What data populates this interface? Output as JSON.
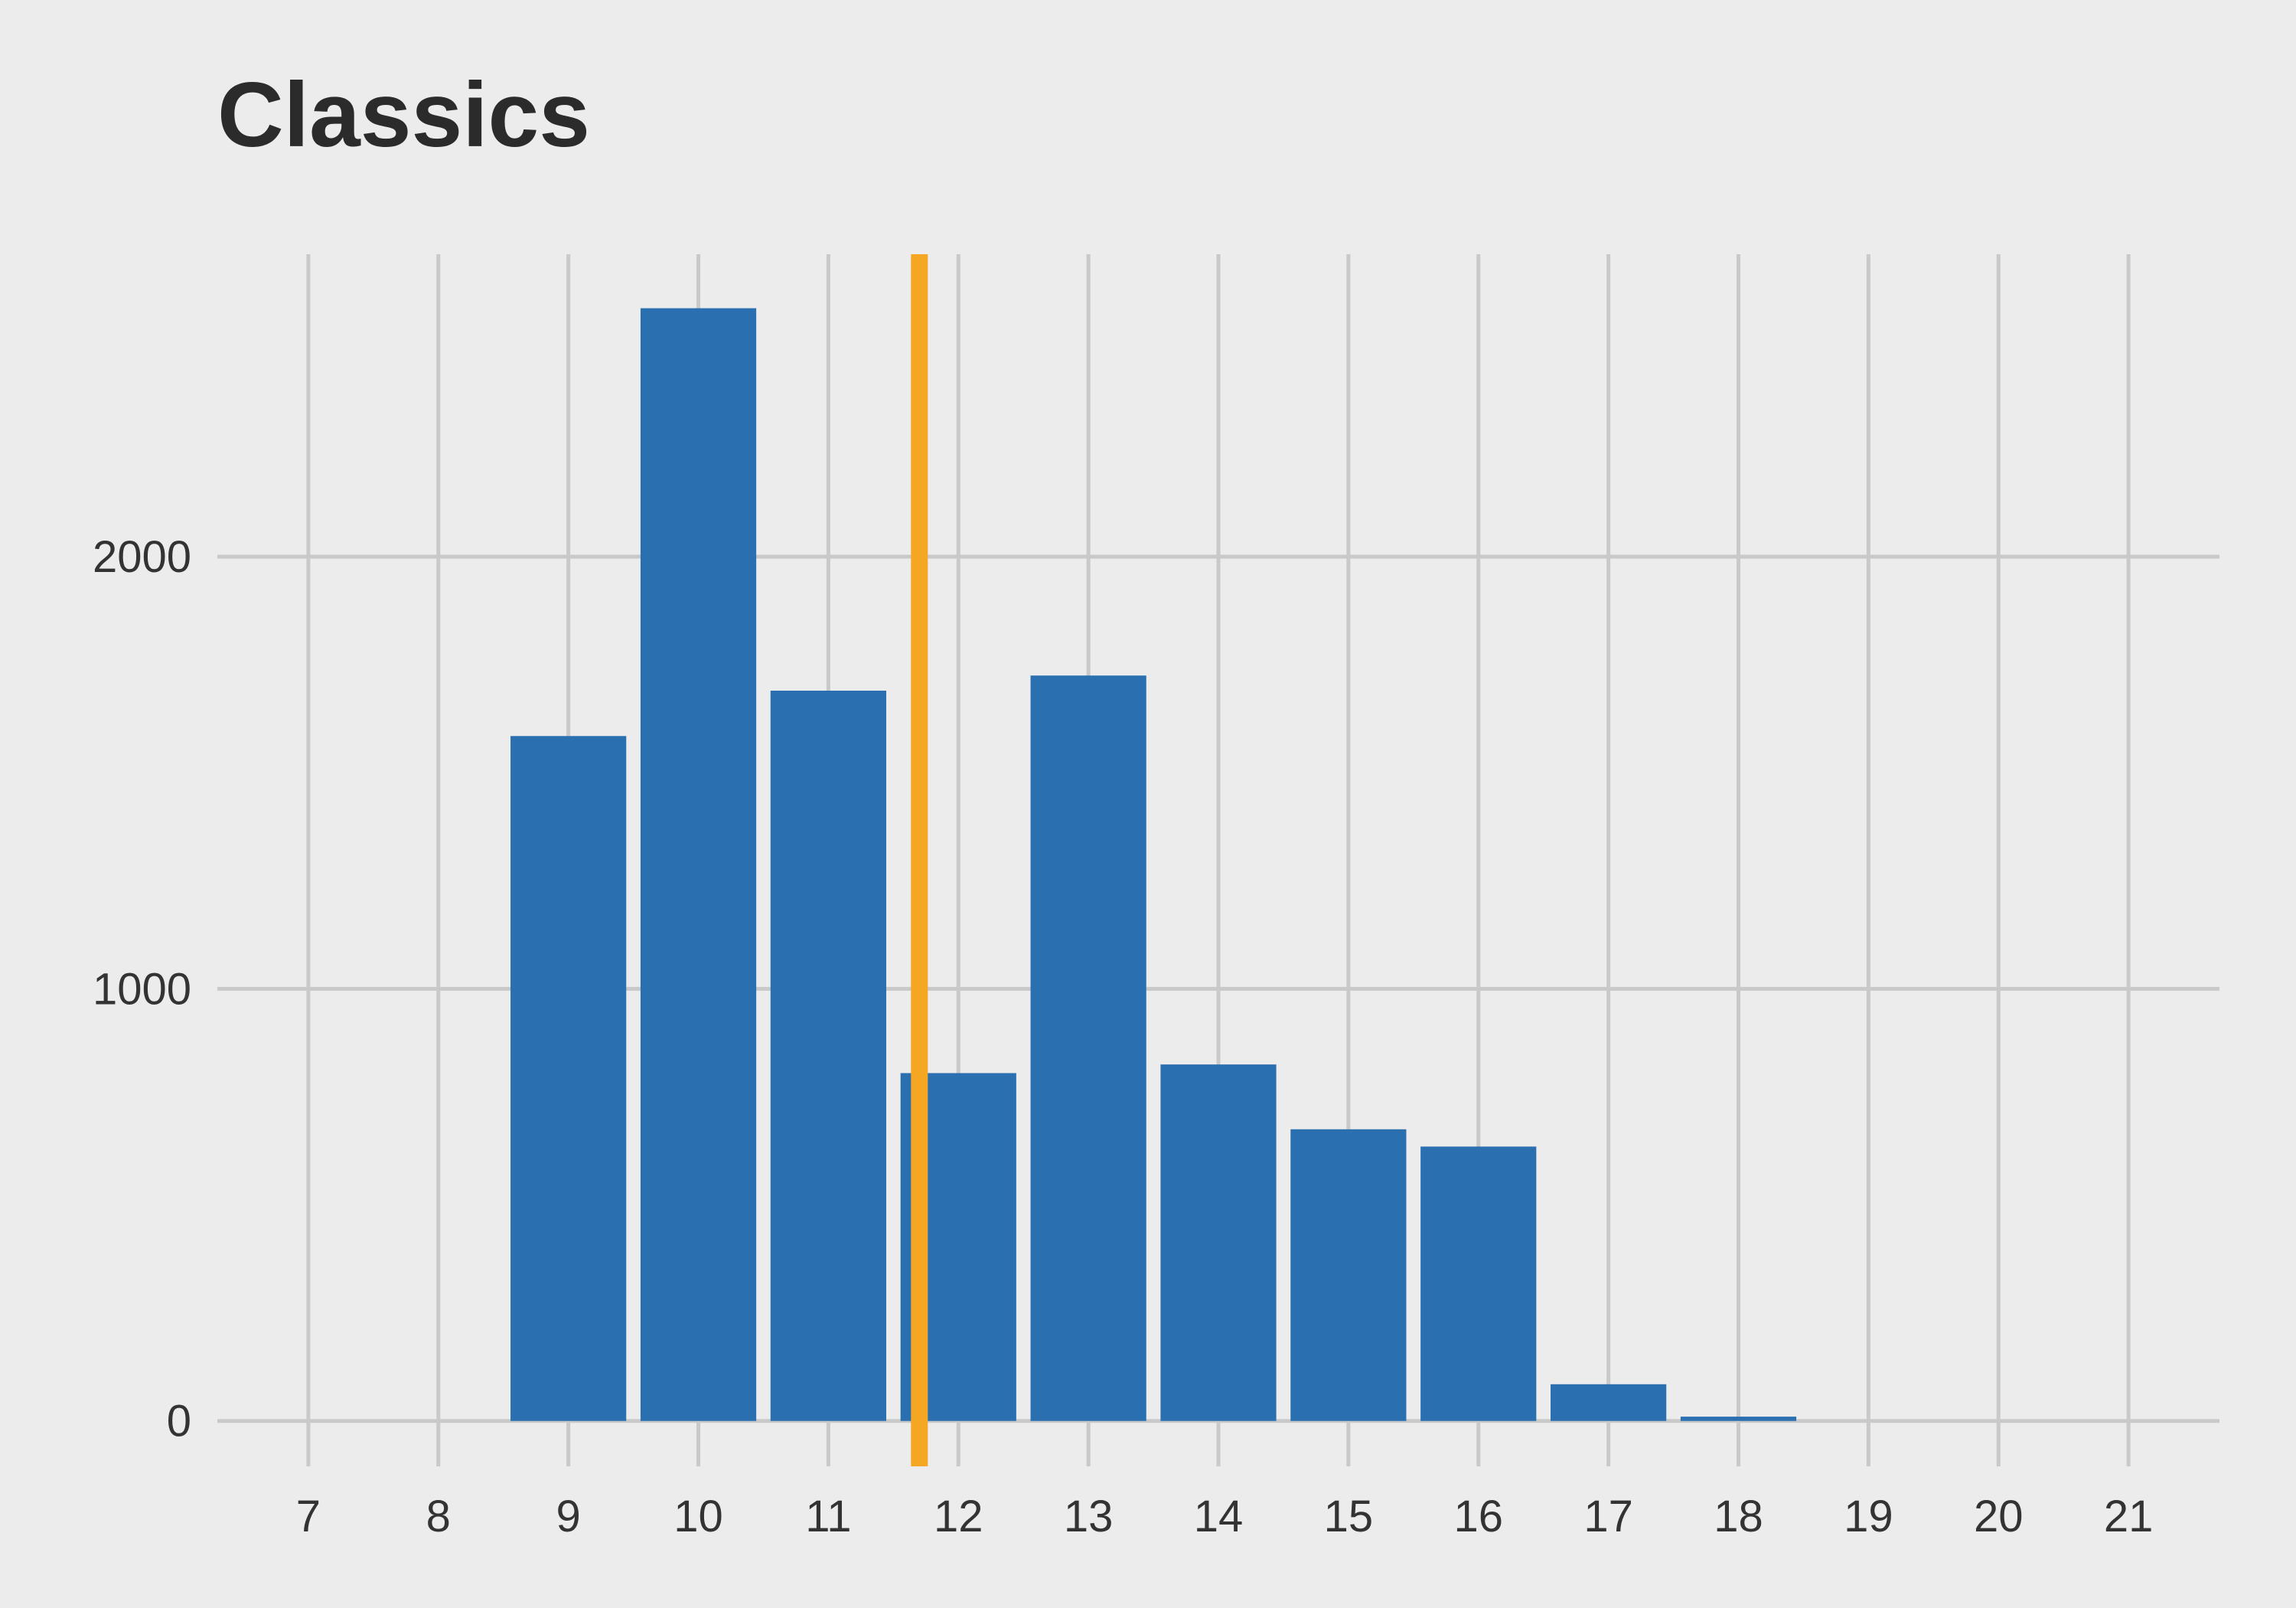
{
  "chart_data": {
    "type": "bar",
    "title": "Classics",
    "xlabel": "",
    "ylabel": "",
    "categories": [
      7,
      8,
      9,
      10,
      11,
      12,
      13,
      14,
      15,
      16,
      17,
      18,
      19,
      20,
      21
    ],
    "values": [
      0,
      0,
      1585,
      2575,
      1690,
      805,
      1725,
      825,
      675,
      635,
      85,
      10,
      0,
      0,
      0
    ],
    "xlim": [
      6.3,
      21.7
    ],
    "ylim": [
      -105,
      2700
    ],
    "yticks": [
      0,
      1000,
      2000
    ],
    "xticks": [
      7,
      8,
      9,
      10,
      11,
      12,
      13,
      14,
      15,
      16,
      17,
      18,
      19,
      20,
      21
    ],
    "reference_line": {
      "x": 11.7,
      "color": "#f5a623"
    },
    "bar_color": "#2a6fb0",
    "grid": true,
    "legend": "none"
  }
}
